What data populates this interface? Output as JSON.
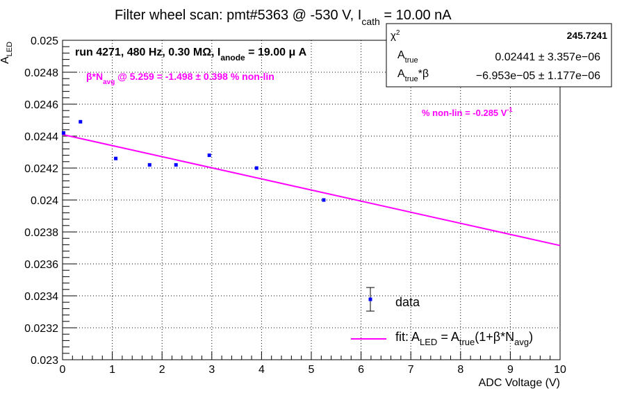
{
  "chart_data": {
    "type": "scatter",
    "title": {
      "pre": "Filter wheel scan: pmt#5363 @  -530 V, I",
      "sub": "cath",
      "post": " = 10.00 nA"
    },
    "xlabel": "ADC Voltage (V)",
    "ylabel": {
      "main": "A",
      "sub": "LED"
    },
    "xlim": [
      0,
      10
    ],
    "ylim": [
      0.023,
      0.025
    ],
    "xticks": [
      "0",
      "1",
      "2",
      "3",
      "4",
      "5",
      "6",
      "7",
      "8",
      "9",
      "10"
    ],
    "yticks": [
      "0.023",
      "0.0232",
      "0.0234",
      "0.0236",
      "0.0238",
      "0.024",
      "0.0242",
      "0.0244",
      "0.0246",
      "0.0248",
      "0.025"
    ],
    "grid": true,
    "x": [
      0.02,
      0.36,
      1.07,
      1.75,
      2.28,
      2.95,
      3.9,
      5.25
    ],
    "y": [
      0.02442,
      0.02449,
      0.02426,
      0.02422,
      0.02422,
      0.02428,
      0.0242,
      0.024
    ],
    "fit": {
      "intercept": 0.02441,
      "slope": -6.95e-05,
      "x_range": [
        0,
        10
      ]
    },
    "annotations": {
      "run": {
        "pre": "run 4271, 480 Hz, 0.30 MΩ, I",
        "sub": "anode",
        "post": " = 19.00 μ A"
      },
      "beta": {
        "pre": "β*N",
        "sub": "avg",
        "post": " @ 5.259 = -1.498 ± 0.398 % non-lin"
      },
      "nonlin": {
        "pre": "% non-lin = -0.285 V",
        "sup": "-1"
      }
    },
    "stats_box": {
      "chi2_label": "χ",
      "chi2_sup": "2",
      "chi2_value": "245.7241",
      "atrue_label": "A",
      "atrue_sub": "true",
      "atrue_value": "0.02441 ± 3.357e−06",
      "atb_label": "A",
      "atb_sub": "true",
      "atb_suffix": "*β",
      "atb_value": "−6.953e−05 ± 1.177e−06"
    },
    "legend": {
      "position": "bottom-right",
      "data_label": "data",
      "fit_label": {
        "p1": "fit: A",
        "s1": "LED",
        "p2": " = A",
        "s2": "true",
        "p3": "(1+β*N",
        "s3": "avg",
        "p4": ")"
      }
    },
    "colors": {
      "points": "#0000ff",
      "fit": "#ff00ff",
      "annotation": "#ff00ff"
    }
  }
}
